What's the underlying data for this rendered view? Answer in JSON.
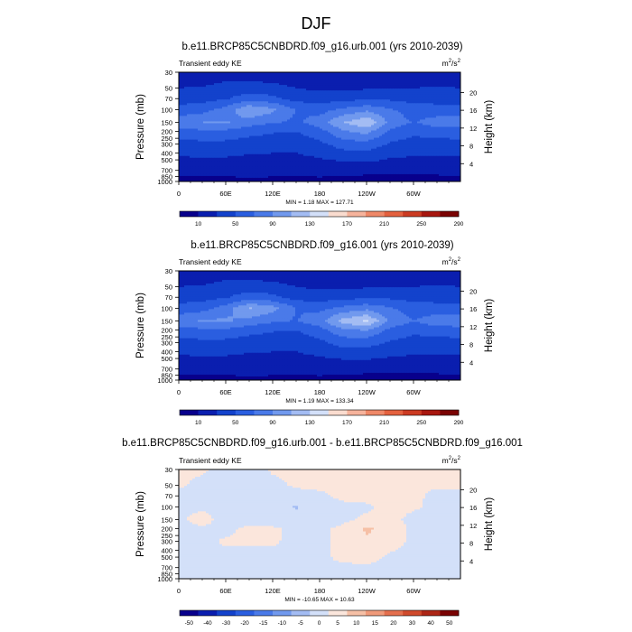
{
  "figure_title": "DJF",
  "colors": {
    "seq_scale": [
      "#08008c",
      "#0a1eaf",
      "#1342cc",
      "#2a5ee0",
      "#4a7ae9",
      "#7199ee",
      "#a3bcf3",
      "#d3e0f9",
      "#fadccf",
      "#f6b39c",
      "#ef8868",
      "#e4613f",
      "#cc3b22",
      "#a8170f",
      "#7a0303"
    ],
    "diff_scale": [
      "#08008c",
      "#0a1eaf",
      "#1342cc",
      "#2a5ee0",
      "#4a7ae9",
      "#7199ee",
      "#a3bcf3",
      "#d3e0f9",
      "#fbe6dc",
      "#f6c0a6",
      "#f09a7a",
      "#e46f4e",
      "#d04a2c",
      "#ad2616",
      "#7a0303"
    ]
  },
  "chart_data": [
    {
      "type": "heatmap",
      "title": "b.e11.BRCP85C5CNBDRD.f09_g16.urb.001 (yrs 2010-2039)",
      "subtitle_left": "Transient eddy KE",
      "units": "m2/s2",
      "units_base": "m",
      "units_exp1": "2",
      "units_mid": "/s",
      "units_exp2": "2",
      "xlabel": "",
      "ylabel": "Pressure (mb)",
      "ylabel_right": "Height (km)",
      "xticks": [
        "0",
        "60E",
        "120E",
        "180",
        "120W",
        "60W"
      ],
      "xtick_lon": [
        0,
        60,
        120,
        180,
        240,
        300
      ],
      "xlim": [
        0,
        360
      ],
      "yticks": [
        "30",
        "50",
        "70",
        "100",
        "150",
        "200",
        "250",
        "300",
        "400",
        "500",
        "700",
        "850",
        "1000"
      ],
      "ytick_p": [
        30,
        50,
        70,
        100,
        150,
        200,
        250,
        300,
        400,
        500,
        700,
        850,
        1000
      ],
      "ylim": [
        1000,
        30
      ],
      "yticks_right": [
        "20",
        "16",
        "12",
        "8",
        "4"
      ],
      "yticks_right_km": [
        20,
        16,
        12,
        8,
        4
      ],
      "stats": "MIN =    1.18   MAX = 127.71",
      "colorbar_labels": [
        "10",
        "50",
        "90",
        "130",
        "170",
        "210",
        "250",
        "290"
      ],
      "colorbar_levels": [
        10,
        30,
        50,
        70,
        90,
        110,
        130,
        150,
        170,
        190,
        210,
        230,
        250,
        270,
        290
      ],
      "lon": [
        0,
        30,
        60,
        90,
        120,
        150,
        180,
        210,
        240,
        270,
        300,
        330,
        360
      ],
      "pressure": [
        30,
        50,
        70,
        100,
        150,
        200,
        300,
        500,
        700,
        1000
      ],
      "values": [
        [
          12,
          14,
          18,
          16,
          14,
          12,
          12,
          12,
          12,
          12,
          12,
          14,
          12
        ],
        [
          30,
          32,
          38,
          40,
          38,
          30,
          26,
          26,
          28,
          30,
          30,
          32,
          30
        ],
        [
          40,
          42,
          48,
          60,
          55,
          42,
          40,
          42,
          46,
          46,
          42,
          42,
          40
        ],
        [
          58,
          62,
          78,
          108,
          95,
          70,
          62,
          75,
          85,
          72,
          60,
          58,
          58
        ],
        [
          82,
          90,
          92,
          80,
          72,
          66,
          80,
          110,
          127,
          85,
          68,
          80,
          82
        ],
        [
          62,
          66,
          66,
          58,
          52,
          50,
          62,
          88,
          98,
          65,
          55,
          60,
          62
        ],
        [
          42,
          45,
          44,
          40,
          38,
          38,
          45,
          60,
          62,
          48,
          42,
          42,
          42
        ],
        [
          26,
          28,
          27,
          25,
          24,
          24,
          28,
          32,
          34,
          28,
          26,
          26,
          26
        ],
        [
          16,
          18,
          15,
          14,
          14,
          14,
          16,
          16,
          15,
          14,
          14,
          15,
          16
        ],
        [
          4,
          3,
          6,
          8,
          7,
          6,
          6,
          4,
          3,
          3,
          3,
          3,
          4
        ]
      ]
    },
    {
      "type": "heatmap",
      "title": "b.e11.BRCP85C5CNBDRD.f09_g16.001 (yrs 2010-2039)",
      "subtitle_left": "Transient eddy KE",
      "units": "m2/s2",
      "units_base": "m",
      "units_exp1": "2",
      "units_mid": "/s",
      "units_exp2": "2",
      "xlabel": "",
      "ylabel": "Pressure (mb)",
      "ylabel_right": "Height (km)",
      "xticks": [
        "0",
        "60E",
        "120E",
        "180",
        "120W",
        "60W"
      ],
      "xtick_lon": [
        0,
        60,
        120,
        180,
        240,
        300
      ],
      "xlim": [
        0,
        360
      ],
      "yticks": [
        "30",
        "50",
        "70",
        "100",
        "150",
        "200",
        "250",
        "300",
        "400",
        "500",
        "700",
        "850",
        "1000"
      ],
      "ytick_p": [
        30,
        50,
        70,
        100,
        150,
        200,
        250,
        300,
        400,
        500,
        700,
        850,
        1000
      ],
      "ylim": [
        1000,
        30
      ],
      "yticks_right": [
        "20",
        "16",
        "12",
        "8",
        "4"
      ],
      "yticks_right_km": [
        20,
        16,
        12,
        8,
        4
      ],
      "stats": "MIN =    1.19   MAX = 133.34",
      "colorbar_labels": [
        "10",
        "50",
        "90",
        "130",
        "170",
        "210",
        "250",
        "290"
      ],
      "colorbar_levels": [
        10,
        30,
        50,
        70,
        90,
        110,
        130,
        150,
        170,
        190,
        210,
        230,
        250,
        270,
        290
      ],
      "lon": [
        0,
        30,
        60,
        90,
        120,
        150,
        180,
        210,
        240,
        270,
        300,
        330,
        360
      ],
      "pressure": [
        30,
        50,
        70,
        100,
        150,
        200,
        300,
        500,
        700,
        1000
      ],
      "values": [
        [
          12,
          14,
          18,
          16,
          14,
          12,
          12,
          12,
          12,
          12,
          12,
          14,
          12
        ],
        [
          30,
          32,
          38,
          40,
          38,
          30,
          26,
          26,
          28,
          30,
          30,
          32,
          30
        ],
        [
          40,
          42,
          48,
          60,
          55,
          42,
          40,
          42,
          46,
          46,
          42,
          42,
          40
        ],
        [
          58,
          62,
          80,
          112,
          98,
          70,
          64,
          76,
          84,
          72,
          60,
          58,
          58
        ],
        [
          84,
          92,
          94,
          82,
          74,
          68,
          84,
          118,
          133,
          86,
          70,
          82,
          84
        ],
        [
          62,
          66,
          66,
          58,
          52,
          50,
          62,
          86,
          92,
          64,
          55,
          60,
          62
        ],
        [
          42,
          45,
          44,
          40,
          38,
          38,
          45,
          58,
          58,
          48,
          42,
          42,
          42
        ],
        [
          26,
          28,
          27,
          25,
          24,
          24,
          28,
          31,
          32,
          28,
          26,
          26,
          26
        ],
        [
          16,
          18,
          15,
          14,
          14,
          14,
          16,
          16,
          15,
          14,
          14,
          15,
          16
        ],
        [
          4,
          3,
          6,
          8,
          7,
          6,
          6,
          4,
          3,
          3,
          3,
          3,
          4
        ]
      ]
    },
    {
      "type": "heatmap",
      "title": "b.e11.BRCP85C5CNBDRD.f09_g16.urb.001 - b.e11.BRCP85C5CNBDRD.f09_g16.001",
      "subtitle_left": "Transient eddy KE",
      "units": "m2/s2",
      "units_base": "m",
      "units_exp1": "2",
      "units_mid": "/s",
      "units_exp2": "2",
      "xlabel": "",
      "ylabel": "Pressure (mb)",
      "ylabel_right": "Height (km)",
      "xticks": [
        "0",
        "60E",
        "120E",
        "180",
        "120W",
        "60W"
      ],
      "xtick_lon": [
        0,
        60,
        120,
        180,
        240,
        300
      ],
      "xlim": [
        0,
        360
      ],
      "yticks": [
        "30",
        "50",
        "70",
        "100",
        "150",
        "200",
        "250",
        "300",
        "400",
        "500",
        "700",
        "850",
        "1000"
      ],
      "ytick_p": [
        30,
        50,
        70,
        100,
        150,
        200,
        250,
        300,
        400,
        500,
        700,
        850,
        1000
      ],
      "ylim": [
        1000,
        30
      ],
      "yticks_right": [
        "20",
        "16",
        "12",
        "8",
        "4"
      ],
      "yticks_right_km": [
        20,
        16,
        12,
        8,
        4
      ],
      "stats": "MIN = -10.65   MAX =  10.63",
      "colorbar_labels": [
        "-50",
        "-40",
        "-30",
        "-20",
        "-15",
        "-10",
        "-5",
        "0",
        "5",
        "10",
        "15",
        "20",
        "30",
        "40",
        "50"
      ],
      "colorbar_levels": [
        -50,
        -40,
        -30,
        -20,
        -15,
        -10,
        -5,
        0,
        5,
        10,
        15,
        20,
        30,
        40,
        50
      ],
      "lon": [
        0,
        30,
        60,
        90,
        120,
        150,
        180,
        210,
        240,
        270,
        300,
        330,
        360
      ],
      "pressure": [
        30,
        50,
        70,
        100,
        150,
        200,
        300,
        500,
        700,
        1000
      ],
      "values": [
        [
          1,
          0.5,
          -1,
          -2,
          0.5,
          1,
          1,
          2,
          2,
          1,
          0.5,
          0.3,
          1
        ],
        [
          0.5,
          -1,
          -1,
          -1,
          -1,
          0.5,
          1,
          1.5,
          2,
          1.5,
          0.5,
          0.5,
          0.5
        ],
        [
          -1,
          -2,
          -1,
          -1,
          -2,
          -1.5,
          -1,
          1,
          2,
          2,
          1,
          -1,
          -1
        ],
        [
          -1,
          -1,
          -2,
          -3,
          -3,
          -5.5,
          -2,
          -1,
          -1,
          2,
          1,
          -2,
          -1
        ],
        [
          -1,
          2,
          -2,
          -2,
          -2,
          -3,
          -3,
          -1,
          1,
          2,
          -2,
          -2,
          -1
        ],
        [
          -1,
          -1,
          -1,
          1,
          0.5,
          -1,
          -1,
          1,
          6,
          3,
          -1,
          -1,
          -1
        ],
        [
          -1,
          -1,
          0.5,
          0.5,
          0.5,
          -1,
          -1,
          1,
          4,
          2,
          -1,
          -1,
          -1
        ],
        [
          -1,
          -1,
          -1,
          -1,
          -1,
          -1,
          -1,
          1,
          2,
          -1,
          -1,
          -1,
          -1
        ],
        [
          -0.5,
          -0.5,
          -1,
          -1,
          -1,
          -0.5,
          -0.5,
          -1,
          -1,
          -1,
          -1,
          -0.5,
          -0.5
        ],
        [
          -0.5,
          -0.5,
          -0.5,
          -0.5,
          -0.5,
          -0.5,
          -0.5,
          -0.5,
          -0.5,
          -0.5,
          -0.5,
          -0.5,
          -0.5
        ]
      ]
    }
  ]
}
